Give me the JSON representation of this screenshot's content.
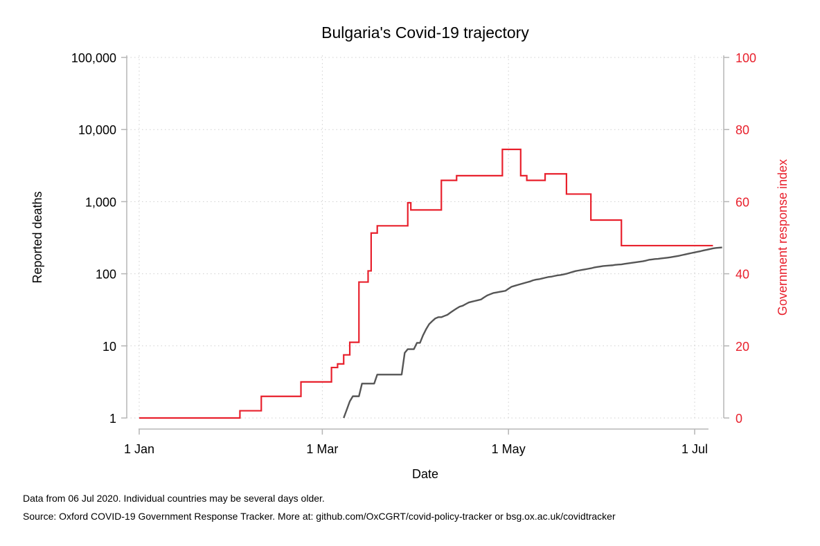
{
  "chart_data": {
    "type": "line",
    "title": "Bulgaria's Covid-19 trajectory",
    "xlabel": "Date",
    "ylabel_left": "Reported deaths",
    "ylabel_right": "Government response index",
    "x_ticks": [
      {
        "day": 0,
        "label": "1 Jan"
      },
      {
        "day": 60,
        "label": "1 Mar"
      },
      {
        "day": 121,
        "label": "1 May"
      },
      {
        "day": 182,
        "label": "1 Jul"
      }
    ],
    "x_range_days": [
      0,
      187
    ],
    "y_left_scale": "log",
    "y_left_ticks": [
      {
        "value": 1,
        "label": "1"
      },
      {
        "value": 10,
        "label": "10"
      },
      {
        "value": 100,
        "label": "100"
      },
      {
        "value": 1000,
        "label": "1,000"
      },
      {
        "value": 10000,
        "label": "10,000"
      },
      {
        "value": 100000,
        "label": "100,000"
      }
    ],
    "y_right_ticks": [
      {
        "value": 0,
        "label": "0"
      },
      {
        "value": 20,
        "label": "20"
      },
      {
        "value": 40,
        "label": "40"
      },
      {
        "value": 60,
        "label": "60"
      },
      {
        "value": 80,
        "label": "80"
      },
      {
        "value": 100,
        "label": "100"
      }
    ],
    "y_right_range": [
      0,
      100
    ],
    "grid": true,
    "series": [
      {
        "name": "Reported deaths",
        "axis": "left",
        "color": "#555555",
        "points": [
          [
            67,
            1
          ],
          [
            68,
            1.3
          ],
          [
            69,
            1.7
          ],
          [
            70,
            2
          ],
          [
            71,
            2
          ],
          [
            72,
            2
          ],
          [
            73,
            3
          ],
          [
            74,
            3
          ],
          [
            75,
            3
          ],
          [
            76,
            3
          ],
          [
            77,
            3
          ],
          [
            78,
            4
          ],
          [
            79,
            4
          ],
          [
            80,
            4
          ],
          [
            81,
            4
          ],
          [
            82,
            4
          ],
          [
            83,
            4
          ],
          [
            84,
            4
          ],
          [
            85,
            4
          ],
          [
            86,
            4
          ],
          [
            87,
            8
          ],
          [
            88,
            9
          ],
          [
            89,
            9
          ],
          [
            90,
            9
          ],
          [
            91,
            11
          ],
          [
            92,
            11
          ],
          [
            93,
            14
          ],
          [
            94,
            17
          ],
          [
            95,
            20
          ],
          [
            96,
            22
          ],
          [
            97,
            24
          ],
          [
            98,
            25
          ],
          [
            99,
            25
          ],
          [
            100,
            26
          ],
          [
            101,
            27
          ],
          [
            102,
            29
          ],
          [
            103,
            31
          ],
          [
            104,
            33
          ],
          [
            105,
            35
          ],
          [
            106,
            36
          ],
          [
            107,
            38
          ],
          [
            108,
            40
          ],
          [
            109,
            41
          ],
          [
            110,
            42
          ],
          [
            111,
            43
          ],
          [
            112,
            44
          ],
          [
            113,
            47
          ],
          [
            114,
            50
          ],
          [
            115,
            52
          ],
          [
            116,
            54
          ],
          [
            117,
            55
          ],
          [
            118,
            56
          ],
          [
            119,
            57
          ],
          [
            120,
            58
          ],
          [
            121,
            62
          ],
          [
            122,
            66
          ],
          [
            123,
            68
          ],
          [
            124,
            70
          ],
          [
            125,
            72
          ],
          [
            126,
            74
          ],
          [
            127,
            76
          ],
          [
            128,
            78
          ],
          [
            129,
            81
          ],
          [
            130,
            83
          ],
          [
            131,
            84
          ],
          [
            132,
            86
          ],
          [
            133,
            88
          ],
          [
            134,
            90
          ],
          [
            135,
            91
          ],
          [
            136,
            93
          ],
          [
            137,
            95
          ],
          [
            138,
            96
          ],
          [
            139,
            98
          ],
          [
            140,
            100
          ],
          [
            141,
            103
          ],
          [
            142,
            106
          ],
          [
            143,
            109
          ],
          [
            144,
            111
          ],
          [
            145,
            113
          ],
          [
            146,
            115
          ],
          [
            147,
            117
          ],
          [
            148,
            119
          ],
          [
            149,
            122
          ],
          [
            150,
            124
          ],
          [
            151,
            126
          ],
          [
            152,
            128
          ],
          [
            153,
            129
          ],
          [
            154,
            130
          ],
          [
            155,
            131
          ],
          [
            156,
            133
          ],
          [
            157,
            134
          ],
          [
            158,
            135
          ],
          [
            159,
            137
          ],
          [
            160,
            139
          ],
          [
            161,
            141
          ],
          [
            162,
            143
          ],
          [
            163,
            145
          ],
          [
            164,
            147
          ],
          [
            165,
            149
          ],
          [
            166,
            152
          ],
          [
            167,
            156
          ],
          [
            168,
            158
          ],
          [
            169,
            160
          ],
          [
            170,
            161
          ],
          [
            171,
            163
          ],
          [
            172,
            165
          ],
          [
            173,
            167
          ],
          [
            174,
            169
          ],
          [
            175,
            172
          ],
          [
            176,
            175
          ],
          [
            177,
            178
          ],
          [
            178,
            182
          ],
          [
            179,
            186
          ],
          [
            180,
            190
          ],
          [
            181,
            194
          ],
          [
            182,
            198
          ],
          [
            183,
            202
          ],
          [
            184,
            206
          ],
          [
            185,
            211
          ],
          [
            186,
            215
          ],
          [
            187,
            220
          ],
          [
            188,
            225
          ],
          [
            189,
            228
          ],
          [
            190,
            230
          ],
          [
            191,
            232
          ]
        ]
      },
      {
        "name": "Government response index",
        "axis": "right",
        "color": "#e8202c",
        "steps": [
          [
            0,
            0
          ],
          [
            33,
            2
          ],
          [
            40,
            6
          ],
          [
            53,
            10
          ],
          [
            63,
            14
          ],
          [
            65,
            15
          ],
          [
            67,
            17.5
          ],
          [
            69,
            21
          ],
          [
            72,
            37.7
          ],
          [
            75,
            40.8
          ],
          [
            76,
            51.3
          ],
          [
            78,
            53.3
          ],
          [
            88,
            59.7
          ],
          [
            89,
            57.7
          ],
          [
            99,
            65.9
          ],
          [
            104,
            67.2
          ],
          [
            119,
            74.5
          ],
          [
            125,
            67.2
          ],
          [
            127,
            65.9
          ],
          [
            133,
            67.7
          ],
          [
            140,
            62.1
          ],
          [
            148,
            54.9
          ],
          [
            158,
            47.8
          ],
          [
            188,
            47.8
          ]
        ]
      }
    ]
  },
  "footnotes": {
    "line1": "Data from 06 Jul 2020. Individual countries may be several days older.",
    "line2": "Source: Oxford COVID-19 Government Response Tracker. More at: github.com/OxCGRT/covid-policy-tracker or bsg.ox.ac.uk/covidtracker"
  }
}
